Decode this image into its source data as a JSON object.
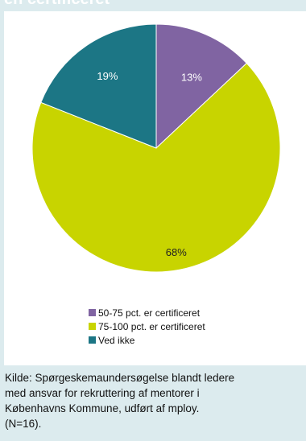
{
  "header": {
    "partial_title": "en certificeret"
  },
  "chart_data": {
    "type": "pie",
    "slices": [
      {
        "label": "50-75 pct. er certificeret",
        "value": 13,
        "display": "13%",
        "color": "#8064a2"
      },
      {
        "label": "75-100 pct. er certificeret",
        "value": 68,
        "display": "68%",
        "color": "#c8d400"
      },
      {
        "label": "Ved ikke",
        "value": 19,
        "display": "19%",
        "color": "#1c7685"
      }
    ],
    "start": "top (12 o'clock), clockwise",
    "legend_position": "bottom"
  },
  "caption": {
    "lines": [
      "Kilde: Spørgeskemaundersøgelse blandt ledere",
      "med ansvar for rekruttering af mentorer i",
      "Københavns Kommune, udført af mploy.",
      "(N=16)."
    ]
  }
}
